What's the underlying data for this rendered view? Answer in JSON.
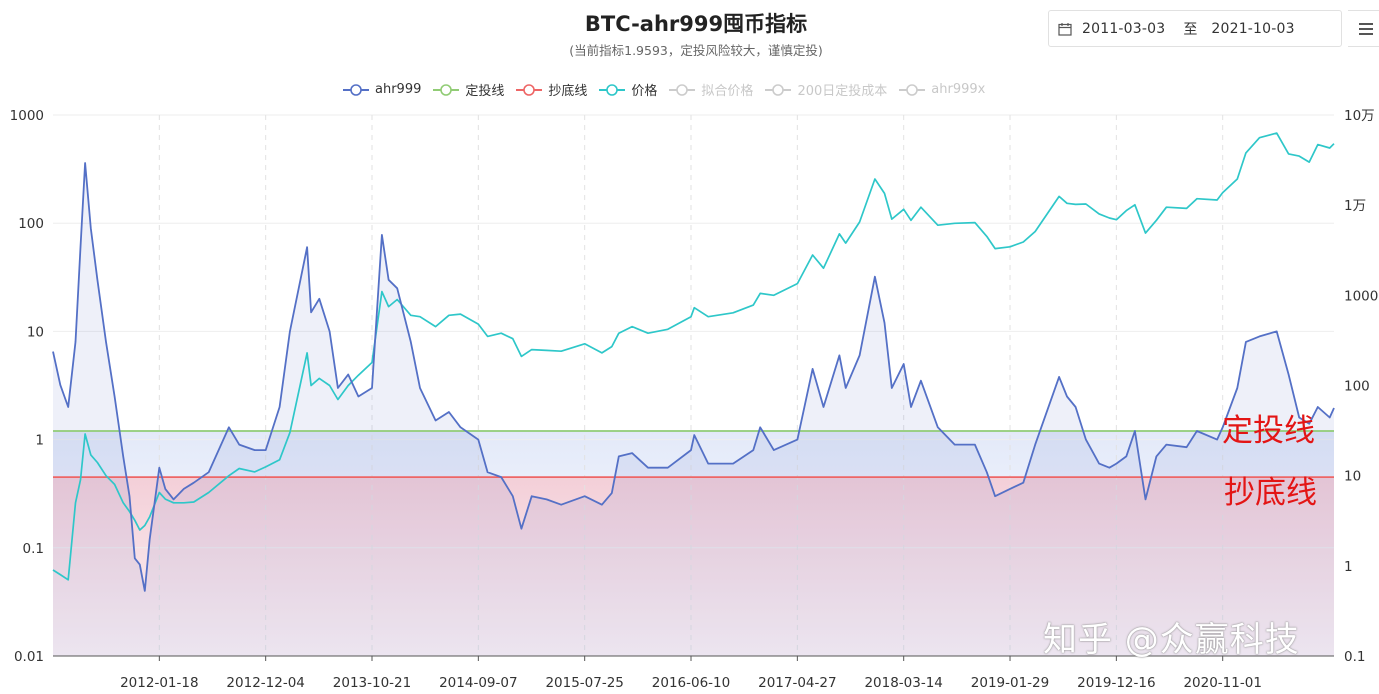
{
  "header": {
    "title": "BTC-ahr999囤币指标",
    "subtitle": "(当前指标1.9593，定投风险较大，谨慎定投)",
    "date_from": "2011-03-03",
    "date_sep": "至",
    "date_to": "2021-10-03"
  },
  "legend": [
    {
      "label": "ahr999",
      "color": "#5470c6",
      "active": true
    },
    {
      "label": "定投线",
      "color": "#91cc75",
      "active": true
    },
    {
      "label": "抄底线",
      "color": "#ee6666",
      "active": true
    },
    {
      "label": "价格",
      "color": "#2ec7c9",
      "active": true
    },
    {
      "label": "拟合价格",
      "color": "#cccccc",
      "active": false
    },
    {
      "label": "200日定投成本",
      "color": "#cccccc",
      "active": false
    },
    {
      "label": "ahr999x",
      "color": "#cccccc",
      "active": false
    }
  ],
  "annotations": {
    "dca_label": "定投线",
    "bottom_label": "抄底线"
  },
  "watermark": "知乎 @众赢科技",
  "chart_data": {
    "type": "line",
    "y_left": {
      "scale": "log",
      "ylim": [
        0.01,
        1000
      ],
      "ticks": [
        "0.01",
        "0.1",
        "1",
        "10",
        "100",
        "1000"
      ]
    },
    "y_right": {
      "scale": "log",
      "ylim": [
        0.1,
        100000
      ],
      "ticks": [
        "0.1",
        "1",
        "10",
        "100",
        "1000",
        "1万",
        "10万"
      ]
    },
    "x_ticks": [
      "2012-01-18",
      "2012-12-04",
      "2013-10-21",
      "2014-09-07",
      "2015-07-25",
      "2016-06-10",
      "2017-04-27",
      "2018-03-14",
      "2019-01-29",
      "2019-12-16",
      "2020-11-01"
    ],
    "x_range": [
      "2011-03-03",
      "2021-10-03"
    ],
    "hlines": [
      {
        "name": "定投线",
        "value": 1.2,
        "color": "#91cc75"
      },
      {
        "name": "抄底线",
        "value": 0.45,
        "color": "#ee6666"
      }
    ],
    "series": [
      {
        "name": "ahr999",
        "axis": "left",
        "color": "#5470c6",
        "points": [
          [
            "2011-03-03",
            6.5
          ],
          [
            "2011-03-25",
            3.2
          ],
          [
            "2011-04-18",
            2.0
          ],
          [
            "2011-05-10",
            8.0
          ],
          [
            "2011-05-25",
            60
          ],
          [
            "2011-06-08",
            360
          ],
          [
            "2011-06-25",
            90
          ],
          [
            "2011-07-15",
            30
          ],
          [
            "2011-08-10",
            8
          ],
          [
            "2011-09-05",
            2.5
          ],
          [
            "2011-10-01",
            0.7
          ],
          [
            "2011-10-20",
            0.3
          ],
          [
            "2011-11-05",
            0.08
          ],
          [
            "2011-11-20",
            0.07
          ],
          [
            "2011-12-05",
            0.04
          ],
          [
            "2011-12-20",
            0.12
          ],
          [
            "2012-01-18",
            0.55
          ],
          [
            "2012-02-05",
            0.35
          ],
          [
            "2012-03-01",
            0.28
          ],
          [
            "2012-04-01",
            0.35
          ],
          [
            "2012-05-01",
            0.4
          ],
          [
            "2012-06-15",
            0.5
          ],
          [
            "2012-08-15",
            1.3
          ],
          [
            "2012-09-15",
            0.9
          ],
          [
            "2012-11-01",
            0.8
          ],
          [
            "2012-12-04",
            0.8
          ],
          [
            "2013-01-15",
            2.0
          ],
          [
            "2013-02-15",
            10
          ],
          [
            "2013-04-08",
            60
          ],
          [
            "2013-04-20",
            15
          ],
          [
            "2013-05-15",
            20
          ],
          [
            "2013-06-15",
            10
          ],
          [
            "2013-07-10",
            3.0
          ],
          [
            "2013-08-10",
            4.0
          ],
          [
            "2013-09-10",
            2.5
          ],
          [
            "2013-10-21",
            3.0
          ],
          [
            "2013-11-20",
            78
          ],
          [
            "2013-12-10",
            30
          ],
          [
            "2014-01-05",
            25
          ],
          [
            "2014-02-15",
            8
          ],
          [
            "2014-03-15",
            3
          ],
          [
            "2014-05-01",
            1.5
          ],
          [
            "2014-06-10",
            1.8
          ],
          [
            "2014-07-15",
            1.3
          ],
          [
            "2014-09-07",
            1.0
          ],
          [
            "2014-10-05",
            0.5
          ],
          [
            "2014-11-15",
            0.45
          ],
          [
            "2014-12-20",
            0.3
          ],
          [
            "2015-01-15",
            0.15
          ],
          [
            "2015-02-15",
            0.3
          ],
          [
            "2015-04-01",
            0.28
          ],
          [
            "2015-05-15",
            0.25
          ],
          [
            "2015-07-25",
            0.3
          ],
          [
            "2015-09-15",
            0.25
          ],
          [
            "2015-10-15",
            0.32
          ],
          [
            "2015-11-05",
            0.7
          ],
          [
            "2015-12-15",
            0.75
          ],
          [
            "2016-02-01",
            0.55
          ],
          [
            "2016-04-01",
            0.55
          ],
          [
            "2016-06-10",
            0.8
          ],
          [
            "2016-06-20",
            1.1
          ],
          [
            "2016-08-01",
            0.6
          ],
          [
            "2016-10-15",
            0.6
          ],
          [
            "2016-12-15",
            0.8
          ],
          [
            "2017-01-05",
            1.3
          ],
          [
            "2017-02-15",
            0.8
          ],
          [
            "2017-04-27",
            1.0
          ],
          [
            "2017-06-12",
            4.5
          ],
          [
            "2017-07-15",
            2.0
          ],
          [
            "2017-09-01",
            6
          ],
          [
            "2017-09-20",
            3
          ],
          [
            "2017-11-01",
            6
          ],
          [
            "2017-12-17",
            32
          ],
          [
            "2018-01-15",
            12
          ],
          [
            "2018-02-06",
            3
          ],
          [
            "2018-03-14",
            5
          ],
          [
            "2018-04-05",
            2
          ],
          [
            "2018-05-05",
            3.5
          ],
          [
            "2018-06-25",
            1.3
          ],
          [
            "2018-08-15",
            0.9
          ],
          [
            "2018-10-15",
            0.9
          ],
          [
            "2018-11-20",
            0.5
          ],
          [
            "2018-12-15",
            0.3
          ],
          [
            "2019-01-29",
            0.35
          ],
          [
            "2019-03-10",
            0.4
          ],
          [
            "2019-04-15",
            0.9
          ],
          [
            "2019-06-26",
            3.8
          ],
          [
            "2019-07-20",
            2.5
          ],
          [
            "2019-08-15",
            2.0
          ],
          [
            "2019-09-15",
            1.0
          ],
          [
            "2019-10-25",
            0.6
          ],
          [
            "2019-11-25",
            0.55
          ],
          [
            "2019-12-16",
            0.6
          ],
          [
            "2020-01-15",
            0.7
          ],
          [
            "2020-02-10",
            1.2
          ],
          [
            "2020-03-13",
            0.28
          ],
          [
            "2020-04-15",
            0.7
          ],
          [
            "2020-05-15",
            0.9
          ],
          [
            "2020-07-15",
            0.85
          ],
          [
            "2020-08-15",
            1.2
          ],
          [
            "2020-10-15",
            1.0
          ],
          [
            "2020-11-01",
            1.3
          ],
          [
            "2020-12-15",
            3
          ],
          [
            "2021-01-10",
            8
          ],
          [
            "2021-02-20",
            9
          ],
          [
            "2021-04-13",
            10
          ],
          [
            "2021-05-19",
            4
          ],
          [
            "2021-06-20",
            1.6
          ],
          [
            "2021-07-20",
            1.4
          ],
          [
            "2021-08-15",
            2.0
          ],
          [
            "2021-09-20",
            1.6
          ],
          [
            "2021-10-03",
            1.9593
          ]
        ]
      },
      {
        "name": "价格",
        "axis": "right",
        "color": "#2ec7c9",
        "points": [
          [
            "2011-03-03",
            0.9
          ],
          [
            "2011-03-25",
            0.8
          ],
          [
            "2011-04-18",
            0.7
          ],
          [
            "2011-05-10",
            5
          ],
          [
            "2011-05-25",
            9
          ],
          [
            "2011-06-08",
            29
          ],
          [
            "2011-06-25",
            17
          ],
          [
            "2011-07-15",
            14
          ],
          [
            "2011-08-10",
            10
          ],
          [
            "2011-09-05",
            8
          ],
          [
            "2011-10-01",
            5
          ],
          [
            "2011-10-20",
            4
          ],
          [
            "2011-11-05",
            3.2
          ],
          [
            "2011-11-20",
            2.5
          ],
          [
            "2011-12-05",
            2.8
          ],
          [
            "2011-12-20",
            3.5
          ],
          [
            "2012-01-18",
            6.5
          ],
          [
            "2012-02-05",
            5.5
          ],
          [
            "2012-03-01",
            5
          ],
          [
            "2012-04-01",
            5
          ],
          [
            "2012-05-01",
            5.1
          ],
          [
            "2012-06-15",
            6.5
          ],
          [
            "2012-08-15",
            10
          ],
          [
            "2012-09-15",
            12
          ],
          [
            "2012-11-01",
            11
          ],
          [
            "2012-12-04",
            12.5
          ],
          [
            "2013-01-15",
            15
          ],
          [
            "2013-02-15",
            30
          ],
          [
            "2013-04-08",
            230
          ],
          [
            "2013-04-20",
            100
          ],
          [
            "2013-05-15",
            120
          ],
          [
            "2013-06-15",
            100
          ],
          [
            "2013-07-10",
            70
          ],
          [
            "2013-08-10",
            100
          ],
          [
            "2013-09-10",
            130
          ],
          [
            "2013-10-21",
            180
          ],
          [
            "2013-11-20",
            1100
          ],
          [
            "2013-12-10",
            750
          ],
          [
            "2014-01-05",
            900
          ],
          [
            "2014-02-15",
            600
          ],
          [
            "2014-03-15",
            580
          ],
          [
            "2014-05-01",
            450
          ],
          [
            "2014-06-10",
            600
          ],
          [
            "2014-07-15",
            620
          ],
          [
            "2014-09-07",
            480
          ],
          [
            "2014-10-05",
            350
          ],
          [
            "2014-11-15",
            380
          ],
          [
            "2014-12-20",
            330
          ],
          [
            "2015-01-15",
            210
          ],
          [
            "2015-02-15",
            250
          ],
          [
            "2015-04-01",
            245
          ],
          [
            "2015-05-15",
            240
          ],
          [
            "2015-07-25",
            290
          ],
          [
            "2015-09-15",
            230
          ],
          [
            "2015-10-15",
            270
          ],
          [
            "2015-11-05",
            380
          ],
          [
            "2015-12-15",
            450
          ],
          [
            "2016-02-01",
            380
          ],
          [
            "2016-04-01",
            420
          ],
          [
            "2016-06-10",
            580
          ],
          [
            "2016-06-20",
            730
          ],
          [
            "2016-08-01",
            580
          ],
          [
            "2016-10-15",
            640
          ],
          [
            "2016-12-15",
            780
          ],
          [
            "2017-01-05",
            1050
          ],
          [
            "2017-02-15",
            1000
          ],
          [
            "2017-04-27",
            1350
          ],
          [
            "2017-06-12",
            2800
          ],
          [
            "2017-07-15",
            2000
          ],
          [
            "2017-09-01",
            4800
          ],
          [
            "2017-09-20",
            3800
          ],
          [
            "2017-11-01",
            6500
          ],
          [
            "2017-12-17",
            19500
          ],
          [
            "2018-01-15",
            13500
          ],
          [
            "2018-02-06",
            7000
          ],
          [
            "2018-03-14",
            9000
          ],
          [
            "2018-04-05",
            6800
          ],
          [
            "2018-05-05",
            9500
          ],
          [
            "2018-06-25",
            6000
          ],
          [
            "2018-08-15",
            6300
          ],
          [
            "2018-10-15",
            6400
          ],
          [
            "2018-11-20",
            4500
          ],
          [
            "2018-12-15",
            3300
          ],
          [
            "2019-01-29",
            3450
          ],
          [
            "2019-03-10",
            3900
          ],
          [
            "2019-04-15",
            5100
          ],
          [
            "2019-06-26",
            12500
          ],
          [
            "2019-07-20",
            10500
          ],
          [
            "2019-08-15",
            10200
          ],
          [
            "2019-09-15",
            10300
          ],
          [
            "2019-10-25",
            8000
          ],
          [
            "2019-11-25",
            7200
          ],
          [
            "2019-12-16",
            6900
          ],
          [
            "2020-01-15",
            8700
          ],
          [
            "2020-02-10",
            10100
          ],
          [
            "2020-03-13",
            4900
          ],
          [
            "2020-04-15",
            6800
          ],
          [
            "2020-05-15",
            9500
          ],
          [
            "2020-07-15",
            9200
          ],
          [
            "2020-08-15",
            11800
          ],
          [
            "2020-10-15",
            11400
          ],
          [
            "2020-11-01",
            13800
          ],
          [
            "2020-12-15",
            19500
          ],
          [
            "2021-01-10",
            38000
          ],
          [
            "2021-02-20",
            56000
          ],
          [
            "2021-04-13",
            63000
          ],
          [
            "2021-05-19",
            37000
          ],
          [
            "2021-06-20",
            35000
          ],
          [
            "2021-07-20",
            30000
          ],
          [
            "2021-08-15",
            47000
          ],
          [
            "2021-09-20",
            43000
          ],
          [
            "2021-10-03",
            48000
          ]
        ]
      }
    ]
  }
}
